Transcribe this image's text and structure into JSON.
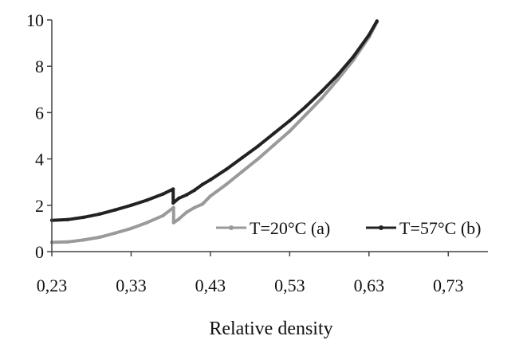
{
  "chart_data": {
    "type": "line",
    "xlabel": "Relative density",
    "ylabel": "",
    "x_ticks": [
      "0,23",
      "0,33",
      "0,43",
      "0,53",
      "0,63",
      "0,73"
    ],
    "x_tick_values": [
      0.23,
      0.33,
      0.43,
      0.53,
      0.63,
      0.73
    ],
    "y_ticks": [
      "0",
      "2",
      "4",
      "6",
      "8",
      "10"
    ],
    "y_tick_values": [
      0,
      2,
      4,
      6,
      8,
      10
    ],
    "xlim": [
      0.23,
      0.78
    ],
    "ylim": [
      0,
      10
    ],
    "legend_position": "bottom-right inside plot",
    "series": [
      {
        "name": "T=20°C (a)",
        "color": "#9a9a9a",
        "x": [
          0.23,
          0.25,
          0.27,
          0.29,
          0.31,
          0.33,
          0.35,
          0.37,
          0.3835,
          0.3836,
          0.39,
          0.4,
          0.41,
          0.42,
          0.43,
          0.45,
          0.47,
          0.49,
          0.51,
          0.53,
          0.55,
          0.57,
          0.59,
          0.61,
          0.63,
          0.64
        ],
        "values": [
          0.4,
          0.42,
          0.5,
          0.62,
          0.8,
          1.0,
          1.25,
          1.55,
          1.9,
          1.25,
          1.4,
          1.7,
          1.9,
          2.05,
          2.4,
          2.9,
          3.45,
          4.0,
          4.6,
          5.2,
          5.9,
          6.6,
          7.4,
          8.25,
          9.25,
          9.9
        ]
      },
      {
        "name": "T=57°C (b)",
        "color": "#222222",
        "x": [
          0.23,
          0.25,
          0.27,
          0.29,
          0.31,
          0.33,
          0.35,
          0.37,
          0.383,
          0.3831,
          0.39,
          0.4,
          0.41,
          0.42,
          0.43,
          0.45,
          0.47,
          0.49,
          0.51,
          0.53,
          0.55,
          0.57,
          0.59,
          0.61,
          0.63,
          0.64
        ],
        "values": [
          1.35,
          1.38,
          1.48,
          1.62,
          1.8,
          2.0,
          2.22,
          2.48,
          2.7,
          2.1,
          2.3,
          2.45,
          2.65,
          2.9,
          3.1,
          3.55,
          4.05,
          4.55,
          5.1,
          5.65,
          6.25,
          6.9,
          7.6,
          8.4,
          9.35,
          9.95
        ]
      }
    ]
  }
}
